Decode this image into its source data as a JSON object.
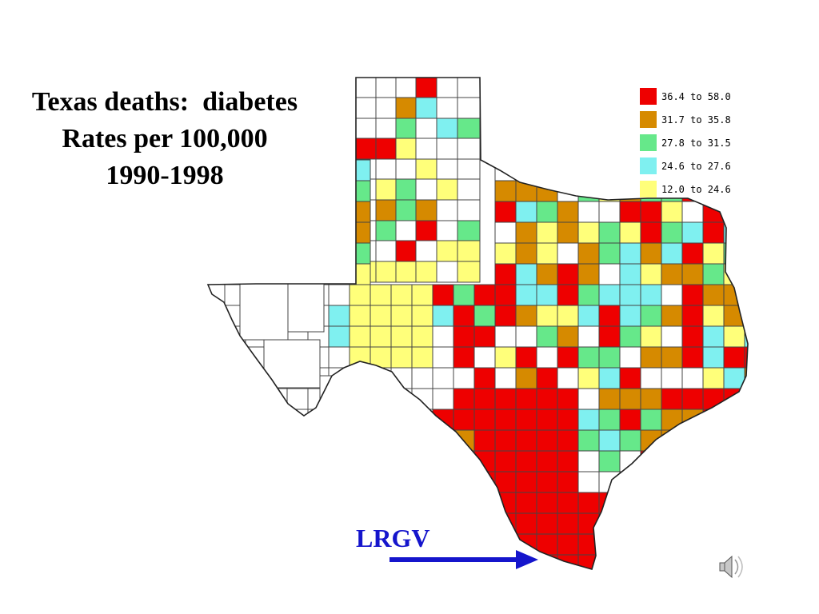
{
  "title": {
    "line1": "Texas deaths:  diabetes",
    "line2": "Rates per 100,000",
    "line3": "1990-1998"
  },
  "legend": [
    {
      "label": "36.4 to 58.0",
      "color": "#ee0000"
    },
    {
      "label": "31.7 to 35.8",
      "color": "#d68a00"
    },
    {
      "label": "27.8 to 31.5",
      "color": "#66e88a"
    },
    {
      "label": "24.6 to 27.6",
      "color": "#7ff0f0"
    },
    {
      "label": "12.0 to 24.6",
      "color": "#ffff7a"
    }
  ],
  "no_data_color": "#ffffff",
  "annotation": {
    "label": "LRGV",
    "color": "#1515cc"
  },
  "icons": {
    "map": "texas-county-map",
    "arrow": "arrow-right-icon",
    "speaker": "speaker-icon"
  }
}
